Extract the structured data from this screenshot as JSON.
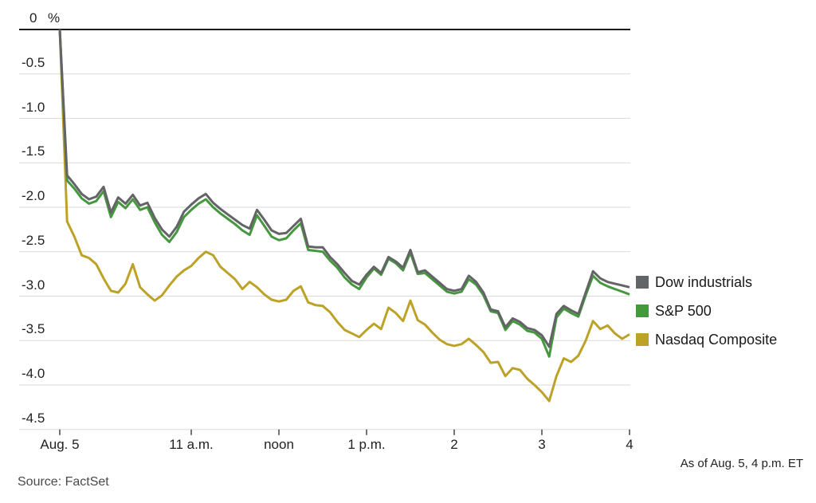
{
  "footer": {
    "source": "Source: FactSet",
    "as_of": "As of Aug. 5, 4 p.m. ET"
  },
  "chart_data": {
    "type": "line",
    "title": "",
    "xlabel": "",
    "ylabel": "%",
    "ylim": [
      -4.5,
      0
    ],
    "grid": true,
    "legend_position": "right",
    "yticks": [
      0,
      -0.5,
      -1.0,
      -1.5,
      -2.0,
      -2.5,
      -3.0,
      -3.5,
      -4.0,
      -4.5
    ],
    "ytick_labels": [
      "0",
      "-0.5",
      "-1.0",
      "-1.5",
      "-2.0",
      "-2.5",
      "-3.0",
      "-3.5",
      "-4.0",
      "-4.5"
    ],
    "xticks": [
      {
        "time": "9:30",
        "label": "Aug. 5"
      },
      {
        "time": "11:00",
        "label": "11 a.m."
      },
      {
        "time": "12:00",
        "label": "noon"
      },
      {
        "time": "13:00",
        "label": "1 p.m."
      },
      {
        "time": "14:00",
        "label": "2"
      },
      {
        "time": "15:00",
        "label": "3"
      },
      {
        "time": "16:00",
        "label": "4"
      }
    ],
    "x_times": [
      "9:30",
      "9:35",
      "9:40",
      "9:45",
      "9:50",
      "9:55",
      "10:00",
      "10:05",
      "10:10",
      "10:15",
      "10:20",
      "10:25",
      "10:30",
      "10:35",
      "10:40",
      "10:45",
      "10:50",
      "10:55",
      "11:00",
      "11:05",
      "11:10",
      "11:15",
      "11:20",
      "11:25",
      "11:30",
      "11:35",
      "11:40",
      "11:45",
      "11:50",
      "11:55",
      "12:00",
      "12:05",
      "12:10",
      "12:15",
      "12:20",
      "12:25",
      "12:30",
      "12:35",
      "12:40",
      "12:45",
      "12:50",
      "12:55",
      "13:00",
      "13:05",
      "13:10",
      "13:15",
      "13:20",
      "13:25",
      "13:30",
      "13:35",
      "13:40",
      "13:45",
      "13:50",
      "13:55",
      "14:00",
      "14:05",
      "14:10",
      "14:15",
      "14:20",
      "14:25",
      "14:30",
      "14:35",
      "14:40",
      "14:45",
      "14:50",
      "14:55",
      "15:00",
      "15:05",
      "15:10",
      "15:15",
      "15:20",
      "15:25",
      "15:30",
      "15:35",
      "15:40",
      "15:45",
      "15:50",
      "15:55",
      "16:00"
    ],
    "series": [
      {
        "name": "Dow industrials",
        "color": "#636466",
        "values": [
          0,
          -1.64,
          -1.74,
          -1.85,
          -1.91,
          -1.88,
          -1.77,
          -2.06,
          -1.89,
          -1.96,
          -1.86,
          -1.98,
          -1.95,
          -2.12,
          -2.25,
          -2.33,
          -2.22,
          -2.05,
          -1.97,
          -1.9,
          -1.85,
          -1.95,
          -2.02,
          -2.08,
          -2.14,
          -2.2,
          -2.24,
          -2.03,
          -2.14,
          -2.26,
          -2.3,
          -2.29,
          -2.21,
          -2.13,
          -2.44,
          -2.45,
          -2.45,
          -2.56,
          -2.64,
          -2.74,
          -2.83,
          -2.87,
          -2.76,
          -2.67,
          -2.74,
          -2.56,
          -2.61,
          -2.68,
          -2.48,
          -2.73,
          -2.71,
          -2.78,
          -2.85,
          -2.92,
          -2.94,
          -2.92,
          -2.77,
          -2.84,
          -2.96,
          -3.15,
          -3.17,
          -3.35,
          -3.25,
          -3.29,
          -3.36,
          -3.38,
          -3.44,
          -3.57,
          -3.2,
          -3.11,
          -3.16,
          -3.2,
          -2.96,
          -2.72,
          -2.8,
          -2.84,
          -2.86,
          -2.88,
          -2.9
        ]
      },
      {
        "name": "S&P 500",
        "color": "#45983e",
        "values": [
          0,
          -1.7,
          -1.79,
          -1.9,
          -1.96,
          -1.93,
          -1.82,
          -2.11,
          -1.94,
          -2.01,
          -1.91,
          -2.03,
          -2.0,
          -2.17,
          -2.31,
          -2.39,
          -2.28,
          -2.11,
          -2.03,
          -1.96,
          -1.91,
          -2.0,
          -2.07,
          -2.13,
          -2.19,
          -2.26,
          -2.31,
          -2.09,
          -2.21,
          -2.33,
          -2.37,
          -2.35,
          -2.26,
          -2.18,
          -2.48,
          -2.49,
          -2.5,
          -2.6,
          -2.68,
          -2.79,
          -2.87,
          -2.92,
          -2.79,
          -2.69,
          -2.76,
          -2.58,
          -2.63,
          -2.71,
          -2.51,
          -2.75,
          -2.74,
          -2.81,
          -2.88,
          -2.95,
          -2.97,
          -2.95,
          -2.81,
          -2.87,
          -2.99,
          -3.17,
          -3.19,
          -3.38,
          -3.28,
          -3.32,
          -3.39,
          -3.41,
          -3.48,
          -3.68,
          -3.24,
          -3.14,
          -3.19,
          -3.23,
          -2.99,
          -2.77,
          -2.85,
          -2.89,
          -2.92,
          -2.95,
          -2.98
        ]
      },
      {
        "name": "Nasdaq Composite",
        "color": "#bda228",
        "values": [
          0,
          -2.16,
          -2.33,
          -2.54,
          -2.57,
          -2.64,
          -2.8,
          -2.94,
          -2.96,
          -2.86,
          -2.64,
          -2.9,
          -2.98,
          -3.05,
          -2.99,
          -2.88,
          -2.78,
          -2.71,
          -2.66,
          -2.57,
          -2.5,
          -2.54,
          -2.67,
          -2.74,
          -2.81,
          -2.92,
          -2.84,
          -2.9,
          -2.98,
          -3.04,
          -3.06,
          -3.04,
          -2.94,
          -2.89,
          -3.07,
          -3.1,
          -3.11,
          -3.18,
          -3.29,
          -3.38,
          -3.42,
          -3.46,
          -3.38,
          -3.31,
          -3.37,
          -3.13,
          -3.19,
          -3.28,
          -3.05,
          -3.27,
          -3.32,
          -3.41,
          -3.49,
          -3.54,
          -3.56,
          -3.54,
          -3.48,
          -3.55,
          -3.63,
          -3.75,
          -3.74,
          -3.9,
          -3.81,
          -3.83,
          -3.93,
          -4.0,
          -4.08,
          -4.18,
          -3.9,
          -3.7,
          -3.74,
          -3.67,
          -3.5,
          -3.28,
          -3.37,
          -3.33,
          -3.42,
          -3.48,
          -3.43
        ]
      }
    ]
  }
}
